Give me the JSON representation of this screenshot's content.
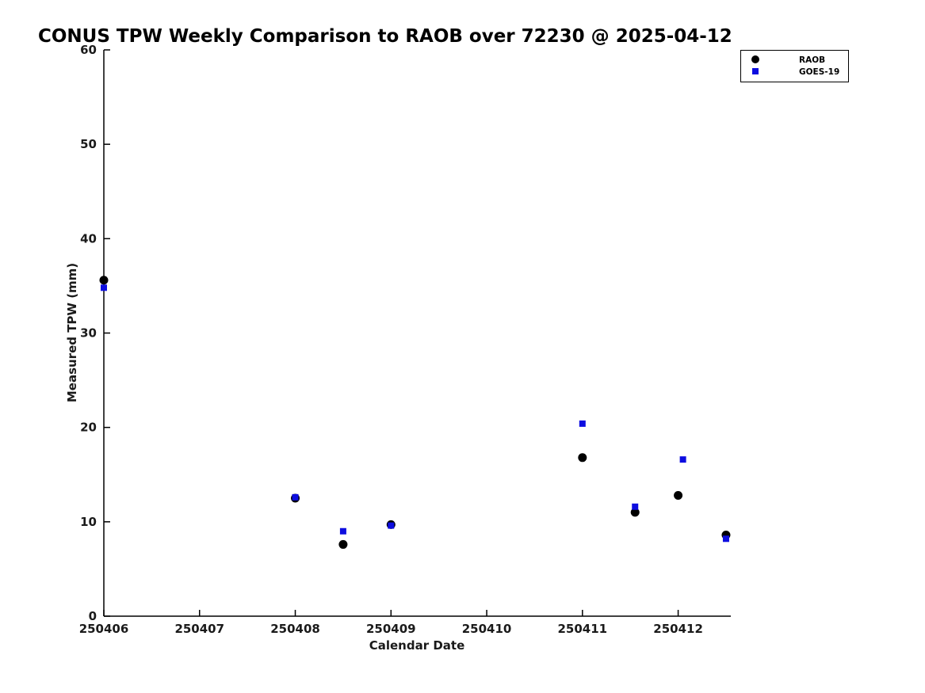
{
  "chart_data": {
    "type": "scatter",
    "title": "CONUS TPW Weekly Comparison to RAOB over 72230 @ 2025-04-12",
    "xlabel": "Calendar Date",
    "ylabel": "Measured TPW (mm)",
    "xlim": [
      250406,
      250412.55
    ],
    "ylim": [
      0,
      60
    ],
    "xticks": [
      250406,
      250407,
      250408,
      250409,
      250410,
      250411,
      250412
    ],
    "yticks": [
      0,
      10,
      20,
      30,
      40,
      50,
      60
    ],
    "grid": false,
    "legend_position": "top-right",
    "series": [
      {
        "name": "RAOB",
        "marker": "circle",
        "color": "#000000",
        "x": [
          250406,
          250408,
          250408.5,
          250409,
          250411,
          250411.55,
          250412,
          250412.5
        ],
        "y": [
          35.6,
          12.5,
          7.6,
          9.7,
          16.8,
          11.0,
          12.8,
          8.6
        ]
      },
      {
        "name": "GOES-19",
        "marker": "square",
        "color": "#0d0de0",
        "x": [
          250406,
          250408,
          250408.5,
          250409,
          250411,
          250411.55,
          250412.05,
          250412.5
        ],
        "y": [
          34.8,
          12.6,
          9.0,
          9.6,
          20.4,
          11.6,
          16.6,
          8.2
        ]
      }
    ]
  }
}
